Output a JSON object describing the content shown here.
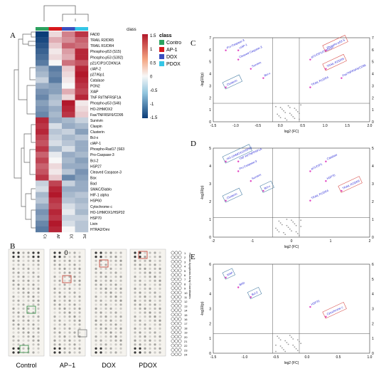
{
  "panels": {
    "A": "A",
    "B": "B",
    "C": "C",
    "D": "D",
    "E": "E"
  },
  "heatmap": {
    "class_header": "class",
    "legend_title": "class",
    "legend": [
      {
        "label": "Control",
        "color": "#2ca25f"
      },
      {
        "label": "AP-1",
        "color": "#d7191c"
      },
      {
        "label": "DOX",
        "color": "#3b4fbf"
      },
      {
        "label": "PDOX",
        "color": "#35c6e6"
      }
    ],
    "colorbar_ticks": [
      "1.5",
      "1",
      "0.5",
      "0",
      "-0.5",
      "-1",
      "-1.5"
    ],
    "columns": [
      "Control",
      "AP-1",
      "DOX",
      "PDOX"
    ],
    "rows": [
      "FADD",
      "TRAIL R2/DR5",
      "TRAIL R1/DR4",
      "Phospho-p53 (S15)",
      "Phospho-p53 (S392)",
      "p21/CIP1/CDKN1A",
      "cIAP-2",
      "p27/Kip1",
      "Catalase",
      "PON2",
      "XIAP",
      "TNF RI/TNFRSF1A",
      "Phospho-p53 (S46)",
      "HO-2/HMOX2",
      "Fas/TNFRSF6/CD95",
      "Survivin",
      "Claspin",
      "Clusterin",
      "Bcl-x",
      "cIAP-1",
      "Phospho-Rad17 (S63",
      "Pro-Caspase-3",
      "Bcl-2",
      "HSP27",
      "Cleaved Caspase-3",
      "Bax",
      "Bad",
      "SMAC/Diablo",
      "HIF-1 alpha",
      "HSP60",
      "Cytochrome c",
      "HO-1/HMOX1/HSP32",
      "HSP70",
      "Livin",
      "HTRA2/Omi"
    ],
    "values": [
      [
        -1.5,
        0.2,
        0.8,
        1.3
      ],
      [
        -1.4,
        0.5,
        0.7,
        1.0
      ],
      [
        -1.3,
        0.3,
        1.0,
        0.9
      ],
      [
        -1.2,
        0.1,
        0.6,
        1.4
      ],
      [
        -1.1,
        0.2,
        0.5,
        1.4
      ],
      [
        -1.0,
        0.0,
        0.9,
        1.1
      ],
      [
        -0.6,
        -1.0,
        0.3,
        1.4
      ],
      [
        -0.5,
        -0.9,
        0.2,
        1.5
      ],
      [
        -0.3,
        -1.0,
        0.1,
        1.4
      ],
      [
        -0.6,
        -0.7,
        0.0,
        1.3
      ],
      [
        -0.8,
        -0.7,
        0.5,
        1.2
      ],
      [
        -0.9,
        -0.5,
        0.2,
        1.4
      ],
      [
        -0.7,
        -0.4,
        1.5,
        0.1
      ],
      [
        -0.8,
        -0.6,
        1.4,
        0.2
      ],
      [
        -0.9,
        -0.5,
        1.3,
        0.3
      ],
      [
        1.4,
        -0.6,
        -0.5,
        -0.3
      ],
      [
        1.3,
        -0.2,
        -0.6,
        -0.5
      ],
      [
        1.4,
        -0.4,
        -0.3,
        -0.7
      ],
      [
        1.2,
        -0.3,
        -0.5,
        -0.4
      ],
      [
        1.1,
        -0.2,
        -0.4,
        -0.6
      ],
      [
        1.3,
        -0.5,
        -0.2,
        -0.6
      ],
      [
        1.0,
        -0.1,
        -0.6,
        -0.5
      ],
      [
        1.2,
        0.0,
        -0.5,
        -0.7
      ],
      [
        1.0,
        0.2,
        -0.6,
        -0.6
      ],
      [
        1.1,
        0.1,
        -0.4,
        -0.8
      ],
      [
        1.3,
        0.3,
        -0.9,
        -0.7
      ],
      [
        -0.3,
        1.2,
        -0.3,
        -0.6
      ],
      [
        -0.2,
        1.4,
        -0.6,
        -0.6
      ],
      [
        -0.5,
        1.5,
        -0.5,
        -0.4
      ],
      [
        -0.4,
        1.3,
        -0.4,
        -0.5
      ],
      [
        -0.6,
        1.2,
        -0.2,
        -0.4
      ],
      [
        -0.8,
        1.4,
        -0.1,
        -0.5
      ],
      [
        -0.7,
        1.3,
        -0.3,
        -0.3
      ],
      [
        -0.9,
        1.5,
        -0.2,
        -0.4
      ],
      [
        -1.0,
        1.4,
        0.0,
        -0.4
      ]
    ]
  },
  "array_captions": [
    "Control",
    "AP−1",
    "DOX",
    "PDOX"
  ],
  "array_key_title": "Human Apoptosis Array Coordinates",
  "array_key_numbers": [
    "1",
    "2",
    "3",
    "4",
    "5",
    "6",
    "7",
    "8",
    "9",
    "10",
    "11",
    "12",
    "13",
    "14",
    "15",
    "16",
    "17",
    "18",
    "19",
    "20",
    "21",
    "22",
    "23",
    "24"
  ],
  "array_highlight": "0",
  "volcano_C": {
    "xlabel": "log2 (FC)",
    "ylabel": "-log10(p)",
    "xticks": [
      "-1.5",
      "-1.0",
      "-0.5",
      "0.0",
      "0.5",
      "1.0",
      "1.5",
      "2.0"
    ],
    "yticks": [
      "0",
      "1",
      "2",
      "3",
      "4",
      "5",
      "6",
      "7"
    ],
    "labels": [
      "Pro-Caspase-3",
      "Cleaved Caspase-3",
      "Survivin",
      "Bcl-x",
      "Clusterin",
      "cIAP-1",
      "p21/CIP1/CDKN1A",
      "TRAIL R2/DR5",
      "FasTNFRSF6/CD95",
      "TRAIL R1/DR4",
      "Phospho-p53 S"
    ],
    "boxed": [
      "TRAIL R2/DR5",
      "Phospho-p53 S",
      "Clusterin"
    ]
  },
  "volcano_D": {
    "xlabel": "log2 (FC)",
    "ylabel": "-log10(p)",
    "xticks": [
      "-2",
      "-1",
      "0",
      "1",
      "2"
    ],
    "yticks": [
      "0",
      "1",
      "2",
      "3",
      "4",
      "5"
    ],
    "labels": [
      "HO-1/HMOX1/HSP32",
      "Pro-Caspase-3",
      "Survivin",
      "Bcl-x",
      "Clusterin",
      "TNF RI/TNFRSF1A",
      "p21/CIP1",
      "HSP70",
      "TRAIL R2/DR5",
      "TRAIL R1/DR4",
      "Catalase"
    ],
    "boxed": [
      "HO-1/HMOX1/HSP32",
      "TRAIL R2/DR5",
      "Bcl-x",
      "Clusterin"
    ]
  },
  "volcano_E": {
    "xlabel": "log2 (FC)",
    "ylabel": "-log10(p)",
    "xticks": [
      "-1.5",
      "-1.0",
      "-0.5",
      "0.0",
      "0.5",
      "1.0"
    ],
    "yticks": [
      "0",
      "1",
      "2",
      "3",
      "4",
      "5",
      "6"
    ],
    "labels": [
      "XIAP",
      "BAD",
      "Bcl-2",
      "HSP70",
      "Cytochrome c"
    ],
    "boxed": [
      "XIAP",
      "Bcl-2",
      "Cytochrome c"
    ]
  }
}
